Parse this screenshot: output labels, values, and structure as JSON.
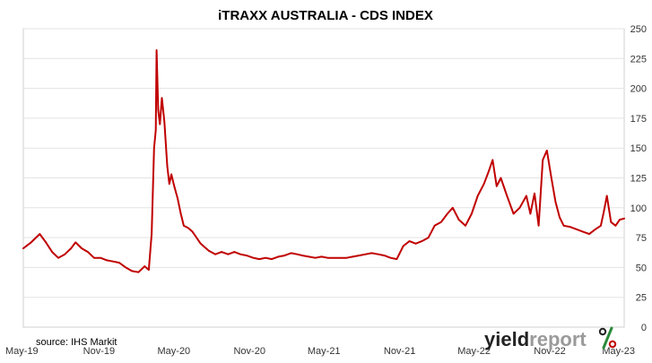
{
  "chart_data": {
    "type": "line",
    "title": "iTRAXX AUSTRALIA - CDS INDEX",
    "xlabel": "",
    "ylabel": "",
    "ylim": [
      0,
      250
    ],
    "y_ticks": [
      0,
      25,
      50,
      75,
      100,
      125,
      150,
      175,
      200,
      225,
      250
    ],
    "y_axis_side": "right",
    "x_tick_labels": [
      "May-19",
      "Nov-19",
      "May-20",
      "Nov-20",
      "May-21",
      "Nov-21",
      "May-22",
      "Nov-22",
      "May-23"
    ],
    "grid": {
      "horizontal": true,
      "vertical": false
    },
    "line_color": "#c00000",
    "series": [
      {
        "x": [
          "2019-05-01",
          "2019-05-20",
          "2019-06-10",
          "2019-06-25",
          "2019-07-10",
          "2019-07-25",
          "2019-08-10",
          "2019-08-25",
          "2019-09-05",
          "2019-09-20",
          "2019-10-05",
          "2019-10-20",
          "2019-11-05",
          "2019-11-20",
          "2019-12-05",
          "2019-12-20",
          "2020-01-05",
          "2020-01-20",
          "2020-02-05",
          "2020-02-20",
          "2020-03-01",
          "2020-03-08",
          "2020-03-14",
          "2020-03-18",
          "2020-03-20",
          "2020-03-24",
          "2020-03-28",
          "2020-04-02",
          "2020-04-08",
          "2020-04-15",
          "2020-04-20",
          "2020-04-25",
          "2020-05-02",
          "2020-05-10",
          "2020-05-18",
          "2020-05-25",
          "2020-06-05",
          "2020-06-15",
          "2020-06-25",
          "2020-07-05",
          "2020-07-15",
          "2020-07-25",
          "2020-08-10",
          "2020-08-25",
          "2020-09-10",
          "2020-09-25",
          "2020-10-10",
          "2020-10-25",
          "2020-11-10",
          "2020-11-25",
          "2020-12-10",
          "2020-12-25",
          "2021-01-10",
          "2021-01-25",
          "2021-02-10",
          "2021-02-25",
          "2021-03-10",
          "2021-03-25",
          "2021-04-10",
          "2021-04-25",
          "2021-05-10",
          "2021-05-25",
          "2021-06-10",
          "2021-06-25",
          "2021-07-10",
          "2021-07-25",
          "2021-08-10",
          "2021-08-25",
          "2021-09-10",
          "2021-09-25",
          "2021-10-10",
          "2021-10-25",
          "2021-11-10",
          "2021-11-25",
          "2021-12-10",
          "2021-12-25",
          "2022-01-10",
          "2022-01-25",
          "2022-02-10",
          "2022-02-25",
          "2022-03-10",
          "2022-03-25",
          "2022-04-10",
          "2022-04-25",
          "2022-05-10",
          "2022-05-25",
          "2022-06-05",
          "2022-06-15",
          "2022-06-25",
          "2022-07-05",
          "2022-07-20",
          "2022-08-05",
          "2022-08-20",
          "2022-09-05",
          "2022-09-15",
          "2022-09-25",
          "2022-10-05",
          "2022-10-15",
          "2022-10-25",
          "2022-11-05",
          "2022-11-15",
          "2022-11-25",
          "2022-12-05",
          "2022-12-20",
          "2023-01-05",
          "2023-01-20",
          "2023-02-05",
          "2023-02-20",
          "2023-03-05",
          "2023-03-12",
          "2023-03-20",
          "2023-03-30",
          "2023-04-10",
          "2023-04-20",
          "2023-05-01"
        ],
        "y": [
          66,
          71,
          78,
          71,
          63,
          58,
          61,
          66,
          71,
          66,
          63,
          58,
          58,
          56,
          55,
          54,
          50,
          47,
          46,
          51,
          48,
          78,
          150,
          165,
          232,
          182,
          170,
          192,
          172,
          135,
          120,
          128,
          118,
          108,
          95,
          85,
          83,
          80,
          75,
          70,
          67,
          64,
          61,
          63,
          61,
          63,
          61,
          60,
          58,
          57,
          58,
          57,
          59,
          60,
          62,
          61,
          60,
          59,
          58,
          59,
          58,
          58,
          58,
          58,
          59,
          60,
          61,
          62,
          61,
          60,
          58,
          57,
          68,
          72,
          70,
          72,
          75,
          85,
          88,
          95,
          100,
          90,
          85,
          95,
          110,
          120,
          130,
          140,
          118,
          125,
          110,
          95,
          100,
          110,
          95,
          112,
          85,
          140,
          148,
          125,
          105,
          92,
          85,
          84,
          82,
          80,
          78,
          82,
          85,
          96,
          110,
          88,
          85,
          90,
          91
        ]
      }
    ]
  },
  "source": {
    "text": "source: IHS Markit"
  },
  "logo": {
    "part1": "yield",
    "part2": "report",
    "symbol": "%"
  }
}
